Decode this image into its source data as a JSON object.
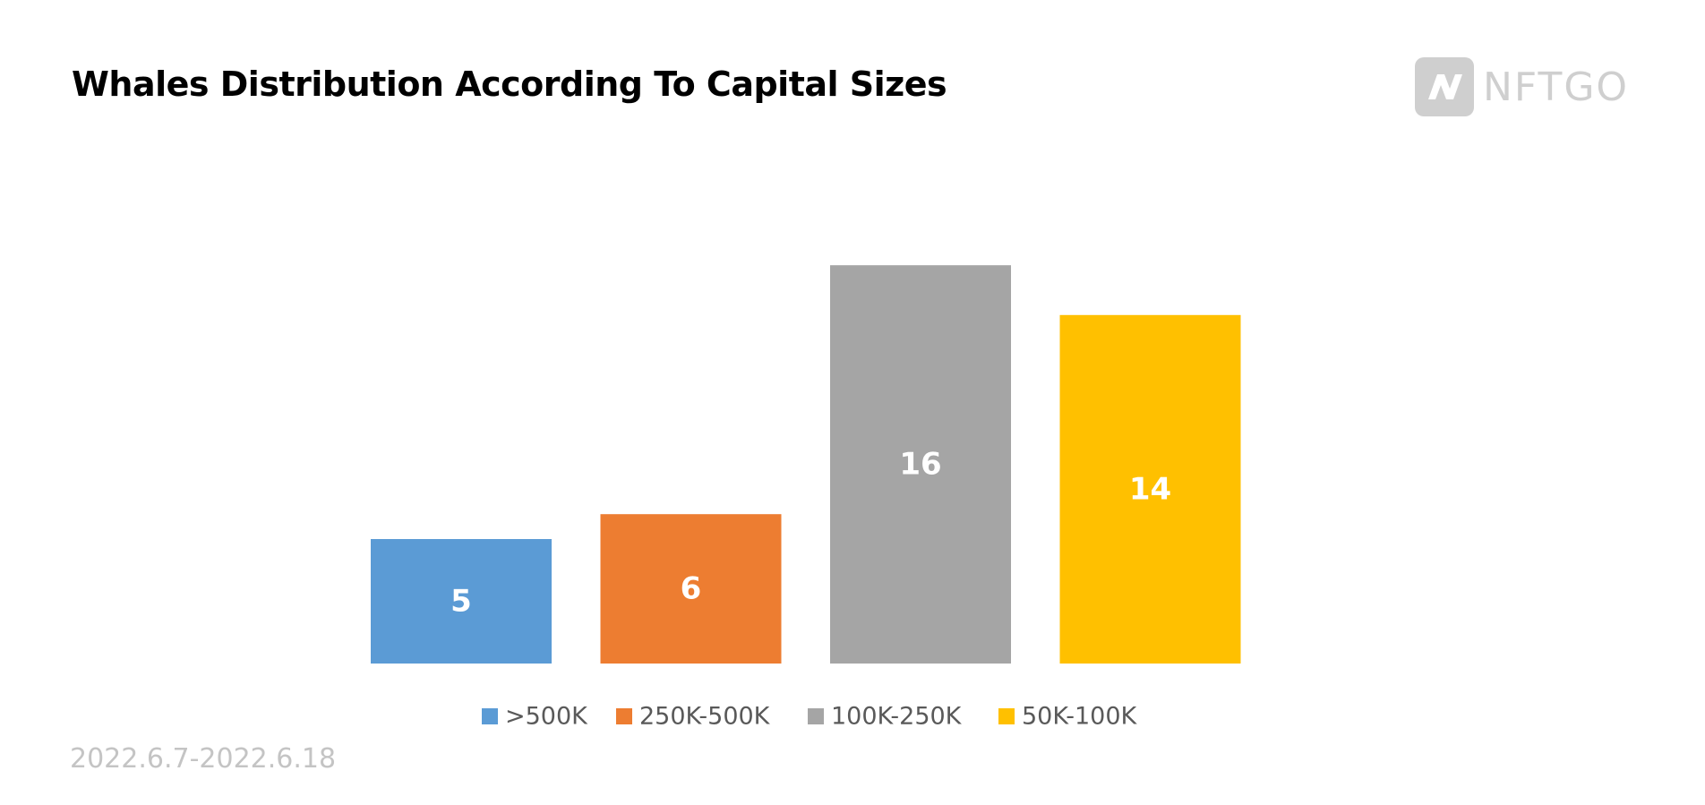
{
  "header": {
    "title": "Whales Distribution According To Capital Sizes"
  },
  "logo": {
    "text": "NFTGO",
    "icon": "nftgo-logo-icon"
  },
  "footer": {
    "date_range": "2022.6.7-2022.6.18"
  },
  "chart_data": {
    "type": "bar",
    "title": "Whales Distribution According To Capital Sizes",
    "xlabel": "",
    "ylabel": "",
    "ylim": [
      0,
      18
    ],
    "grid": false,
    "legend_position": "bottom",
    "series": [
      {
        "name": ">500K",
        "value": 5,
        "color": "#5B9BD5"
      },
      {
        "name": "250K-500K",
        "value": 6,
        "color": "#ED7D31"
      },
      {
        "name": "100K-250K",
        "value": 16,
        "color": "#A5A5A5"
      },
      {
        "name": "50K-100K",
        "value": 14,
        "color": "#FFC000"
      }
    ]
  }
}
